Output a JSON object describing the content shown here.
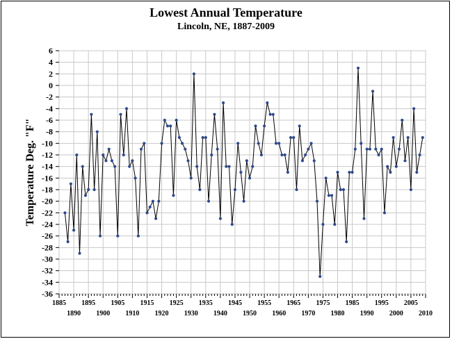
{
  "chart_data": {
    "type": "line",
    "title": "Lowest Annual Temperature",
    "subtitle": "Lincoln, NE, 1887-2009",
    "ylabel": "Temperature Deg. \"F\"",
    "xlabel": "",
    "xlim": [
      1885,
      2010
    ],
    "ylim": [
      -36,
      6
    ],
    "y_ticks": [
      6,
      4,
      2,
      0,
      -2,
      -4,
      -6,
      -8,
      -10,
      -12,
      -14,
      -16,
      -18,
      -20,
      -22,
      -24,
      -26,
      -28,
      -30,
      -32,
      -34,
      -36
    ],
    "x_ticks_upper": [
      "1885",
      "1895",
      "1905",
      "1915",
      "1925",
      "1935",
      "1945",
      "1955",
      "1965",
      "1975",
      "1985",
      "1995",
      "2005"
    ],
    "x_ticks_lower": [
      "1890",
      "1900",
      "1910",
      "1920",
      "1930",
      "1940",
      "1950",
      "1960",
      "1970",
      "1980",
      "1990",
      "2000",
      "2010"
    ],
    "grid": true,
    "legend": "none",
    "line_color": "#000000",
    "marker_color": "#2e4a8a",
    "x": [
      1887,
      1888,
      1889,
      1890,
      1891,
      1892,
      1893,
      1894,
      1895,
      1896,
      1897,
      1898,
      1899,
      1900,
      1901,
      1902,
      1903,
      1904,
      1905,
      1906,
      1907,
      1908,
      1909,
      1910,
      1911,
      1912,
      1913,
      1914,
      1915,
      1916,
      1917,
      1918,
      1919,
      1920,
      1921,
      1922,
      1923,
      1924,
      1925,
      1926,
      1927,
      1928,
      1929,
      1930,
      1931,
      1932,
      1933,
      1934,
      1935,
      1936,
      1937,
      1938,
      1939,
      1940,
      1941,
      1942,
      1943,
      1944,
      1945,
      1946,
      1947,
      1948,
      1949,
      1950,
      1951,
      1952,
      1953,
      1954,
      1955,
      1956,
      1957,
      1958,
      1959,
      1960,
      1961,
      1962,
      1963,
      1964,
      1965,
      1966,
      1967,
      1968,
      1969,
      1970,
      1971,
      1972,
      1973,
      1974,
      1975,
      1976,
      1977,
      1978,
      1979,
      1980,
      1981,
      1982,
      1983,
      1984,
      1985,
      1986,
      1987,
      1988,
      1989,
      1990,
      1991,
      1992,
      1993,
      1994,
      1995,
      1996,
      1997,
      1998,
      1999,
      2000,
      2001,
      2002,
      2003,
      2004,
      2005,
      2006,
      2007,
      2008,
      2009
    ],
    "values": [
      -22,
      -27,
      -17,
      -25,
      -12,
      -29,
      -14,
      -19,
      -18,
      -5,
      -18,
      -8,
      -26,
      -12,
      -13,
      -11,
      -13,
      -14,
      -26,
      -5,
      -12,
      -4,
      -14,
      -13,
      -16,
      -26,
      -11,
      -10,
      -22,
      -21,
      -20,
      -23,
      -20,
      -10,
      -6,
      -7,
      -7,
      -19,
      -6,
      -9,
      -10,
      -11,
      -13,
      -16,
      2,
      -14,
      -18,
      -9,
      -9,
      -20,
      -12,
      -5,
      -11,
      -23,
      -3,
      -14,
      -14,
      -24,
      -18,
      -10,
      -15,
      -20,
      -13,
      -16,
      -14,
      -7,
      -10,
      -12,
      -7,
      -3,
      -5,
      -5,
      -10,
      -10,
      -12,
      -12,
      -15,
      -9,
      -9,
      -18,
      -7,
      -13,
      -12,
      -11,
      -10,
      -13,
      -20,
      -33,
      -24,
      -16,
      -19,
      -19,
      -24,
      -15,
      -18,
      -18,
      -27,
      -15,
      -15,
      -11,
      3,
      -10,
      -23,
      -11,
      -11,
      -1,
      -11,
      -12,
      -11,
      -22,
      -14,
      -15,
      -9,
      -14,
      -11,
      -6,
      -13,
      -9,
      -18,
      -4,
      -15,
      -12,
      -9
    ]
  }
}
